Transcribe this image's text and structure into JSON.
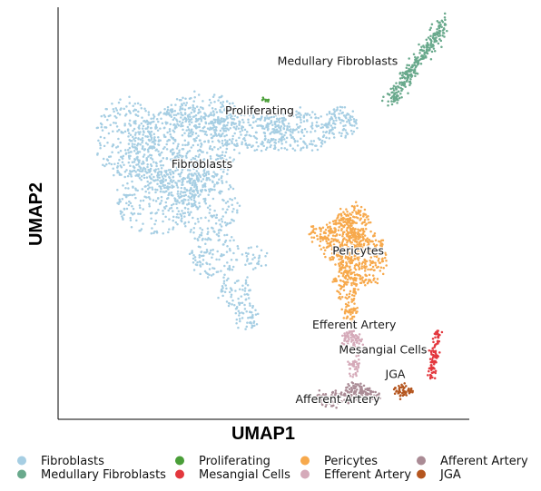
{
  "chart_data": {
    "type": "scatter",
    "xlabel": "UMAP1",
    "ylabel": "UMAP2",
    "xlim": [
      0,
      100
    ],
    "ylim": [
      0,
      100
    ],
    "legend_placement": "bottom",
    "legend": [
      {
        "name": "Fibroblasts",
        "color": "#a6cee3"
      },
      {
        "name": "Medullary Fibroblasts",
        "color": "#69a98c"
      },
      {
        "name": "Proliferating",
        "color": "#4a9e38"
      },
      {
        "name": "Mesangial Cells",
        "color": "#e3373d"
      },
      {
        "name": "Pericytes",
        "color": "#f7a94c"
      },
      {
        "name": "Efferent Artery",
        "color": "#d5aab9"
      },
      {
        "name": "Afferent Artery",
        "color": "#aa8b95"
      },
      {
        "name": "JGA",
        "color": "#b5561f"
      }
    ],
    "cluster_labels": [
      {
        "text": "Medullary Fibroblasts",
        "x": 68,
        "y": 86
      },
      {
        "text": "Proliferating",
        "x": 49,
        "y": 74
      },
      {
        "text": "Fibroblasts",
        "x": 35,
        "y": 61
      },
      {
        "text": "Pericytes",
        "x": 73,
        "y": 40
      },
      {
        "text": "Efferent Artery",
        "x": 72,
        "y": 22
      },
      {
        "text": "Mesangial Cells",
        "x": 79,
        "y": 16
      },
      {
        "text": "JGA",
        "x": 82,
        "y": 10
      },
      {
        "text": "Afferent Artery",
        "x": 68,
        "y": 4
      }
    ],
    "clusters": [
      {
        "name": "Fibroblasts",
        "color": "#a6cee3",
        "blobs": [
          [
            30,
            65,
            13,
            11,
            620
          ],
          [
            17,
            68,
            8,
            10,
            240
          ],
          [
            35,
            74,
            9,
            5,
            160
          ],
          [
            47,
            70,
            10,
            5,
            200
          ],
          [
            58,
            70,
            9,
            5,
            200
          ],
          [
            69,
            72,
            4,
            4,
            90
          ],
          [
            24,
            53,
            10,
            8,
            220
          ],
          [
            36,
            52,
            8,
            8,
            180
          ],
          [
            38,
            40,
            6,
            6,
            110
          ],
          [
            43,
            31,
            4,
            4,
            60
          ],
          [
            46,
            25,
            3,
            3,
            45
          ],
          [
            48,
            39,
            3,
            3,
            30
          ]
        ]
      },
      {
        "name": "Medullary Fibroblasts",
        "color": "#69a98c",
        "line": [
          [
            80.5,
            77
          ],
          [
            94,
            96
          ]
        ],
        "n": 280,
        "spread": 1.1
      },
      {
        "name": "Proliferating",
        "color": "#4a9e38",
        "blobs": [
          [
            50.5,
            77.5,
            0.6,
            0.7,
            8
          ]
        ]
      },
      {
        "name": "Pericytes",
        "color": "#f7a94c",
        "blobs": [
          [
            69,
            43,
            5,
            6,
            220
          ],
          [
            74,
            39,
            6,
            7,
            260
          ],
          [
            72,
            48,
            4,
            4,
            120
          ],
          [
            70,
            33,
            3,
            4,
            90
          ],
          [
            71,
            26,
            1.6,
            3,
            50
          ],
          [
            63,
            45,
            2,
            2,
            30
          ]
        ]
      },
      {
        "name": "Efferent Artery",
        "color": "#d5aab9",
        "blobs": [
          [
            71.5,
            19,
            2.5,
            2.5,
            80
          ],
          [
            72,
            13,
            1.4,
            2.5,
            40
          ]
        ]
      },
      {
        "name": "Afferent Artery",
        "color": "#aa8b95",
        "blobs": [
          [
            72,
            7,
            2.5,
            2,
            70
          ],
          [
            67,
            5,
            5,
            1.8,
            90
          ],
          [
            76,
            6,
            2.2,
            1.5,
            40
          ]
        ]
      },
      {
        "name": "Mesangial Cells",
        "color": "#e3373d",
        "line": [
          [
            90.5,
            10
          ],
          [
            92.5,
            21
          ]
        ],
        "n": 90,
        "spread": 0.9
      },
      {
        "name": "JGA",
        "color": "#b5561f",
        "blobs": [
          [
            84,
            7,
            2.4,
            1.4,
            55
          ]
        ]
      }
    ]
  }
}
